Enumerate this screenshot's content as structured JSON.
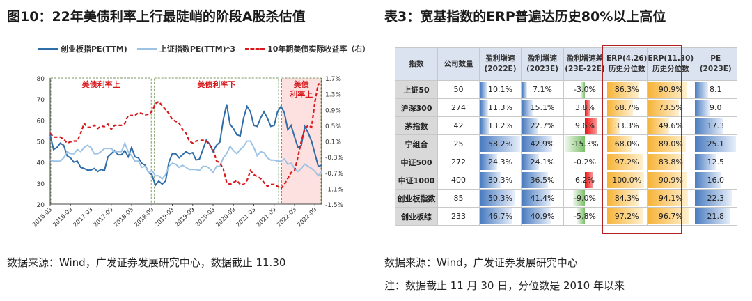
{
  "left": {
    "title": "图10：22年美债利率上行最陡峭的阶段A股杀估值",
    "source": "数据来源：Wind，广发证券发展研究中心，数据截止 11.30"
  },
  "right": {
    "title": "表3：宽基指数的ERP普遍达历史80%以上高位",
    "source": "数据来源：Wind，广发证券发展研究中心",
    "note": "注：数据截止 11 月 30 日，分位数是 2010 年以来"
  },
  "chart_data": {
    "type": "line",
    "x_start": "2016-03",
    "x_unit": "month",
    "x_ticks": [
      "2016-03",
      "2016-09",
      "2017-03",
      "2017-09",
      "2018-03",
      "2018-09",
      "2019-03",
      "2019-09",
      "2020-03",
      "2020-09",
      "2021-03",
      "2021-09",
      "2022-03",
      "2022-09"
    ],
    "ylim": [
      20,
      80
    ],
    "yticks": [
      "80",
      "70",
      "60",
      "50",
      "40",
      "30",
      "20"
    ],
    "y2lim": [
      -1.5,
      1.7
    ],
    "y2ticks": [
      "1.7%",
      "1.3%",
      "0.9%",
      "0.5%",
      "0.1%",
      "-0.3%",
      "-0.7%",
      "-1.1%",
      "-1.5%"
    ],
    "legend": [
      "创业板指PE(TTM)",
      "上证指数PE(TTM)*3",
      "10年期美债实际收益率（右）"
    ],
    "regions": [
      {
        "label": "美债利率上",
        "from": 0,
        "to": 30
      },
      {
        "label": "美债利率下",
        "from": 30.5,
        "to": 67.5
      },
      {
        "label": "美债",
        "label2": "利率上",
        "from": 68,
        "to": 80,
        "shaded": true
      }
    ],
    "series": [
      {
        "name": "创业板指PE(TTM)",
        "color": "#2e6da8",
        "axis": "left",
        "values": [
          53,
          46,
          47,
          49,
          48,
          43,
          42,
          40,
          40.5,
          37.5,
          37,
          36.2,
          36.2,
          37,
          35.5,
          36.5,
          36,
          42.5,
          44,
          45.5,
          43.5,
          43.5,
          45.5,
          42.5,
          47,
          42.5,
          42,
          39.5,
          38.5,
          35,
          34,
          29,
          31,
          29.5,
          31,
          40,
          44,
          44,
          42,
          43.5,
          45,
          44,
          44.5,
          41,
          41.5,
          46,
          50.5,
          48.5,
          45,
          48,
          49.5,
          60,
          67.5,
          58,
          56,
          53,
          52.5,
          61,
          66.5,
          64,
          57.5,
          57,
          61,
          64,
          61,
          57,
          57.5,
          64,
          66.5,
          63.5,
          55.5,
          57.5,
          52,
          47,
          48,
          57,
          54,
          50,
          44,
          38,
          38.5
        ]
      },
      {
        "name": "上证指数PE(TTM)*3",
        "color": "#9cc3e6",
        "axis": "left",
        "values": [
          41,
          40.5,
          40.5,
          40.5,
          42,
          45,
          44,
          44,
          46,
          45,
          47,
          48,
          47,
          44,
          44,
          45,
          46.5,
          46.5,
          46.5,
          45,
          45,
          45,
          49,
          45,
          43,
          40.5,
          40.5,
          37.5,
          38,
          35,
          36,
          33.5,
          33.5,
          32,
          34,
          38,
          39.5,
          39,
          37.5,
          38.5,
          37.5,
          36.5,
          36.5,
          36.5,
          36,
          38,
          38,
          37,
          35,
          38,
          38,
          42,
          44,
          47.5,
          45.5,
          44,
          46,
          47.5,
          50,
          50,
          47,
          43,
          45,
          44.5,
          42,
          41,
          41,
          40.5,
          40.5,
          41.5,
          39,
          39.5,
          37,
          35.5,
          37,
          39,
          38,
          37,
          35.5,
          33.5,
          35.5
        ]
      },
      {
        "name": "10年期美债实际收益率（右）",
        "color": "#d7191c",
        "axis": "right",
        "values": [
          0.3,
          0.2,
          0.2,
          0.2,
          0.15,
          0.05,
          0.08,
          0.1,
          0.1,
          0.3,
          0.55,
          0.45,
          0.45,
          0.5,
          0.42,
          0.48,
          0.47,
          0.53,
          0.4,
          0.5,
          0.5,
          0.5,
          0.55,
          0.75,
          0.75,
          0.75,
          0.82,
          0.8,
          0.77,
          0.78,
          0.85,
          1.05,
          1.1,
          1.0,
          0.9,
          0.8,
          0.65,
          0.6,
          0.55,
          0.4,
          0.3,
          0.1,
          0.05,
          0.1,
          0.12,
          0.12,
          0.1,
          0.0,
          -0.1,
          -0.4,
          -0.45,
          -0.6,
          -0.95,
          -1.0,
          -0.95,
          -0.9,
          -1.0,
          -1.0,
          -0.9,
          -0.65,
          -0.75,
          -0.8,
          -0.85,
          -0.95,
          -1.05,
          -1.0,
          -1.0,
          -1.05,
          -1.1,
          -1.0,
          -0.85,
          -0.7,
          -0.65,
          -0.3,
          0.1,
          0.4,
          0.5,
          0.45,
          1.1,
          1.55,
          1.55
        ]
      }
    ]
  },
  "table": {
    "headers": [
      [
        "指数"
      ],
      [
        "公司数量"
      ],
      [
        "盈利增速",
        "(2022E)"
      ],
      [
        "盈利增速",
        "(2023E)"
      ],
      [
        "盈利增速差",
        "(23E-22E)"
      ],
      [
        "ERP(4.26)",
        "历史分位数"
      ],
      [
        "ERP(11.30)",
        "历史分位数"
      ],
      [
        "PE",
        "(2023E)"
      ]
    ],
    "rows": [
      [
        "上证50",
        "50",
        "10.1%",
        "7.1%",
        "-3.0%",
        "86.3%",
        "90.9%",
        "8.1"
      ],
      [
        "沪深300",
        "274",
        "11.3%",
        "15.1%",
        "3.8%",
        "68.7%",
        "73.5%",
        "9.0"
      ],
      [
        "茅指数",
        "42",
        "13.2%",
        "22.7%",
        "9.6%",
        "33.3%",
        "49.6%",
        "17.3"
      ],
      [
        "宁组合",
        "25",
        "58.2%",
        "42.9%",
        "-15.3%",
        "68.0%",
        "89.0%",
        "25.1"
      ],
      [
        "中证500",
        "272",
        "24.3%",
        "24.1%",
        "-0.2%",
        "97.2%",
        "83.8%",
        "12.5"
      ],
      [
        "中证1000",
        "400",
        "30.3%",
        "36.5%",
        "6.2%",
        "100.0%",
        "90.9%",
        "16.0"
      ],
      [
        "创业板指数",
        "85",
        "50.3%",
        "41.4%",
        "-9.0%",
        "84.3%",
        "94.1%",
        "22.3"
      ],
      [
        "创业板综",
        "233",
        "46.7%",
        "40.9%",
        "-5.8%",
        "97.2%",
        "96.7%",
        "21.8"
      ]
    ]
  }
}
